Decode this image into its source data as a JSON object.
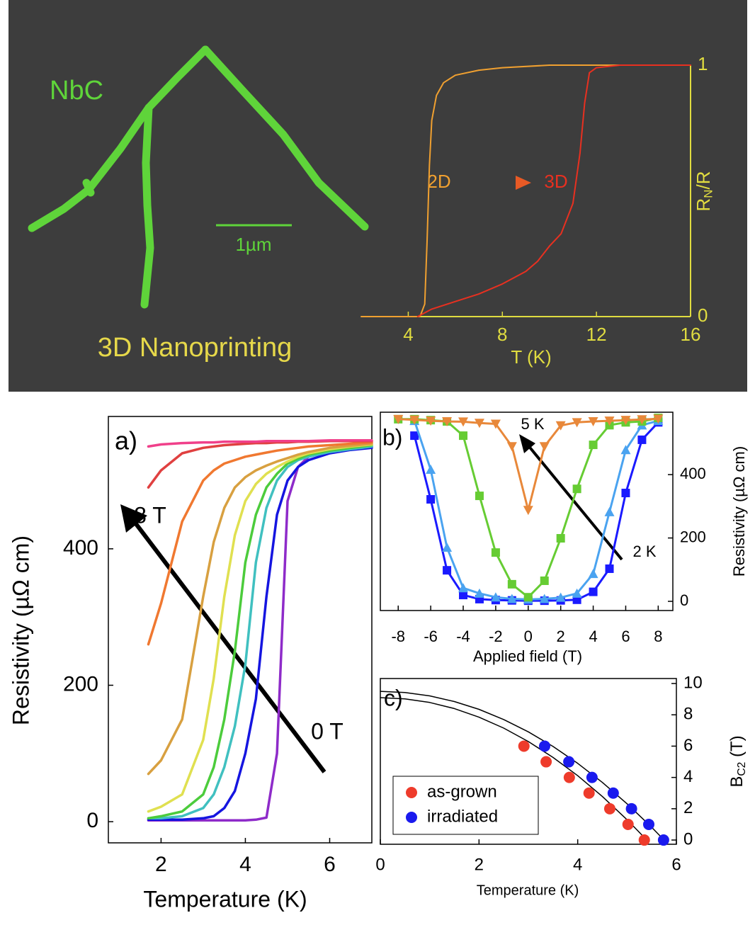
{
  "sem_image": {
    "material_label": "NbC",
    "scale_bar": "1µm",
    "caption": "3D Nanoprinting"
  },
  "chart_data": [
    {
      "type": "line",
      "xlabel": "T (K)",
      "ylabel": {
        "main": "R",
        "subscript": "N",
        "rest": "/R"
      },
      "xlim": [
        2,
        16
      ],
      "xticks": [
        4,
        8,
        12,
        16
      ],
      "ylim": [
        0,
        1
      ],
      "yticks": [
        0,
        1
      ],
      "annotations": [
        "2D",
        "3D"
      ],
      "series": [
        {
          "color": "#f0a030",
          "x": [
            2,
            4.5,
            4.7,
            4.8,
            4.9,
            5.0,
            5.2,
            5.5,
            6,
            7,
            8,
            10,
            16
          ],
          "values": [
            0,
            0,
            0.05,
            0.3,
            0.6,
            0.78,
            0.88,
            0.93,
            0.96,
            0.98,
            0.99,
            1,
            1
          ]
        },
        {
          "color": "#e83020",
          "x": [
            4.4,
            5,
            6,
            7,
            8,
            9,
            9.5,
            10,
            10.5,
            11,
            11.3,
            11.5,
            11.7,
            12,
            13,
            16
          ],
          "values": [
            0,
            0.03,
            0.06,
            0.09,
            0.13,
            0.18,
            0.22,
            0.28,
            0.33,
            0.45,
            0.65,
            0.85,
            0.97,
            0.99,
            1,
            1
          ]
        }
      ]
    },
    {
      "type": "line",
      "xlabel": "Temperature (K)",
      "ylabel": "Resistivity (µΩ cm)",
      "xlim": [
        0.75,
        7
      ],
      "xticks": [
        2,
        4,
        6
      ],
      "ylim": [
        -31,
        594
      ],
      "yticks": [
        0,
        200,
        400
      ],
      "annotations": [
        "a)",
        "8 T",
        "0 T"
      ],
      "x": [
        1.7,
        2,
        2.5,
        3,
        3.25,
        3.5,
        3.75,
        4,
        4.25,
        4.5,
        4.75,
        5,
        5.25,
        5.5,
        6,
        6.5,
        7
      ],
      "series": [
        {
          "color": "#8e2bc9",
          "values": [
            2,
            2,
            2,
            2,
            2,
            2,
            2,
            2,
            3,
            6,
            100,
            470,
            520,
            535,
            545,
            548,
            550
          ]
        },
        {
          "color": "#1515e0",
          "values": [
            3,
            3,
            3,
            5,
            8,
            20,
            45,
            100,
            180,
            330,
            450,
            500,
            520,
            530,
            540,
            545,
            548
          ]
        },
        {
          "color": "#40c0c0",
          "values": [
            5,
            5,
            8,
            20,
            40,
            80,
            140,
            230,
            380,
            460,
            500,
            520,
            530,
            535,
            542,
            546,
            550
          ]
        },
        {
          "color": "#4ccc3c",
          "values": [
            5,
            8,
            15,
            40,
            80,
            150,
            250,
            380,
            450,
            490,
            510,
            525,
            532,
            538,
            544,
            548,
            552
          ]
        },
        {
          "color": "#e0e050",
          "values": [
            15,
            22,
            40,
            120,
            210,
            330,
            420,
            470,
            495,
            510,
            520,
            528,
            535,
            540,
            546,
            550,
            553
          ]
        },
        {
          "color": "#d8a040",
          "values": [
            70,
            90,
            150,
            330,
            410,
            460,
            490,
            505,
            515,
            522,
            528,
            533,
            538,
            542,
            548,
            551,
            554
          ]
        },
        {
          "color": "#f07830",
          "values": [
            260,
            320,
            440,
            500,
            515,
            525,
            530,
            535,
            538,
            541,
            544,
            546,
            548,
            550,
            552,
            554,
            556
          ]
        },
        {
          "color": "#e04040",
          "values": [
            490,
            515,
            540,
            548,
            550,
            552,
            553,
            554,
            555,
            555,
            556,
            556,
            557,
            557,
            558,
            558,
            558
          ]
        },
        {
          "color": "#f0408a",
          "values": [
            550,
            553,
            555,
            556,
            556,
            557,
            557,
            557,
            557,
            558,
            558,
            558,
            558,
            558,
            559,
            559,
            559
          ]
        }
      ]
    },
    {
      "type": "line",
      "xlabel": "Applied field (T)",
      "ylabel": "Resistivity (µΩ cm)",
      "xlim": [
        -9.1,
        8.9
      ],
      "xticks": [
        -8,
        -6,
        -4,
        -2,
        0,
        2,
        4,
        6,
        8
      ],
      "ylim": [
        -29,
        597
      ],
      "yticks": [
        0,
        200,
        400
      ],
      "annotations": [
        "b)",
        "5 K",
        "2 K"
      ],
      "x": [
        -8,
        -7,
        -6,
        -5,
        -4,
        -3,
        -2,
        -1,
        0,
        1,
        2,
        3,
        4,
        5,
        6,
        7,
        8
      ],
      "series": [
        {
          "color": "#1a1aff",
          "marker": "square",
          "values": [
            null,
            523,
            322,
            98,
            20,
            7,
            4,
            3,
            2,
            2,
            3,
            5,
            30,
            103,
            342,
            510,
            565
          ]
        },
        {
          "color": "#4aa3f0",
          "marker": "triangle",
          "values": [
            null,
            570,
            416,
            170,
            42,
            25,
            13,
            8,
            6,
            8,
            12,
            25,
            87,
            282,
            478,
            556,
            570
          ]
        },
        {
          "color": "#66cc33",
          "marker": "square",
          "values": [
            575,
            575,
            572,
            568,
            523,
            333,
            154,
            54,
            13,
            65,
            199,
            355,
            494,
            556,
            565,
            568,
            579
          ]
        },
        {
          "color": "#e8883a",
          "marker": "triangle-down",
          "values": [
            575,
            573,
            570,
            568,
            567,
            563,
            560,
            489,
            288,
            489,
            555,
            565,
            568,
            570,
            572,
            574,
            576
          ]
        }
      ]
    },
    {
      "type": "scatter",
      "xlabel": "Temperature (K)",
      "ylabel": {
        "main": "B",
        "subscript": "C2",
        "rest": " (T)"
      },
      "xlim": [
        0,
        6
      ],
      "xticks": [
        0,
        2,
        4,
        6
      ],
      "ylim": [
        -0.27,
        10.32
      ],
      "yticks": [
        0,
        2,
        4,
        6,
        8,
        10
      ],
      "annotations": [
        "c)"
      ],
      "legend": "lower left",
      "series": [
        {
          "name": "as-grown",
          "color": "#ee3b2b",
          "x": [
            2.91,
            3.36,
            3.83,
            4.23,
            4.65,
            5.02,
            5.35
          ],
          "values": [
            6,
            5,
            4,
            3,
            2,
            1,
            0
          ]
        },
        {
          "name": "irradiated",
          "color": "#1a1aee",
          "x": [
            3.33,
            3.82,
            4.29,
            4.72,
            5.09,
            5.44,
            5.74
          ],
          "values": [
            6,
            5,
            4,
            3,
            2,
            1,
            0
          ]
        }
      ],
      "curves": [
        {
          "color": "#000000",
          "x": [
            0,
            0.5,
            1,
            1.5,
            2,
            2.5,
            3,
            3.5,
            4,
            4.5,
            5,
            5.4
          ],
          "values": [
            9.1,
            9.02,
            8.79,
            8.4,
            7.85,
            7.15,
            6.29,
            5.28,
            4.11,
            2.78,
            1.3,
            0
          ]
        },
        {
          "color": "#000000",
          "x": [
            0,
            0.5,
            1,
            1.5,
            2,
            2.5,
            3,
            3.5,
            4,
            4.5,
            5,
            5.5,
            5.75
          ],
          "values": [
            9.5,
            9.43,
            9.21,
            8.85,
            8.35,
            7.7,
            6.91,
            5.98,
            4.9,
            3.68,
            2.32,
            0.81,
            0
          ]
        }
      ]
    }
  ]
}
